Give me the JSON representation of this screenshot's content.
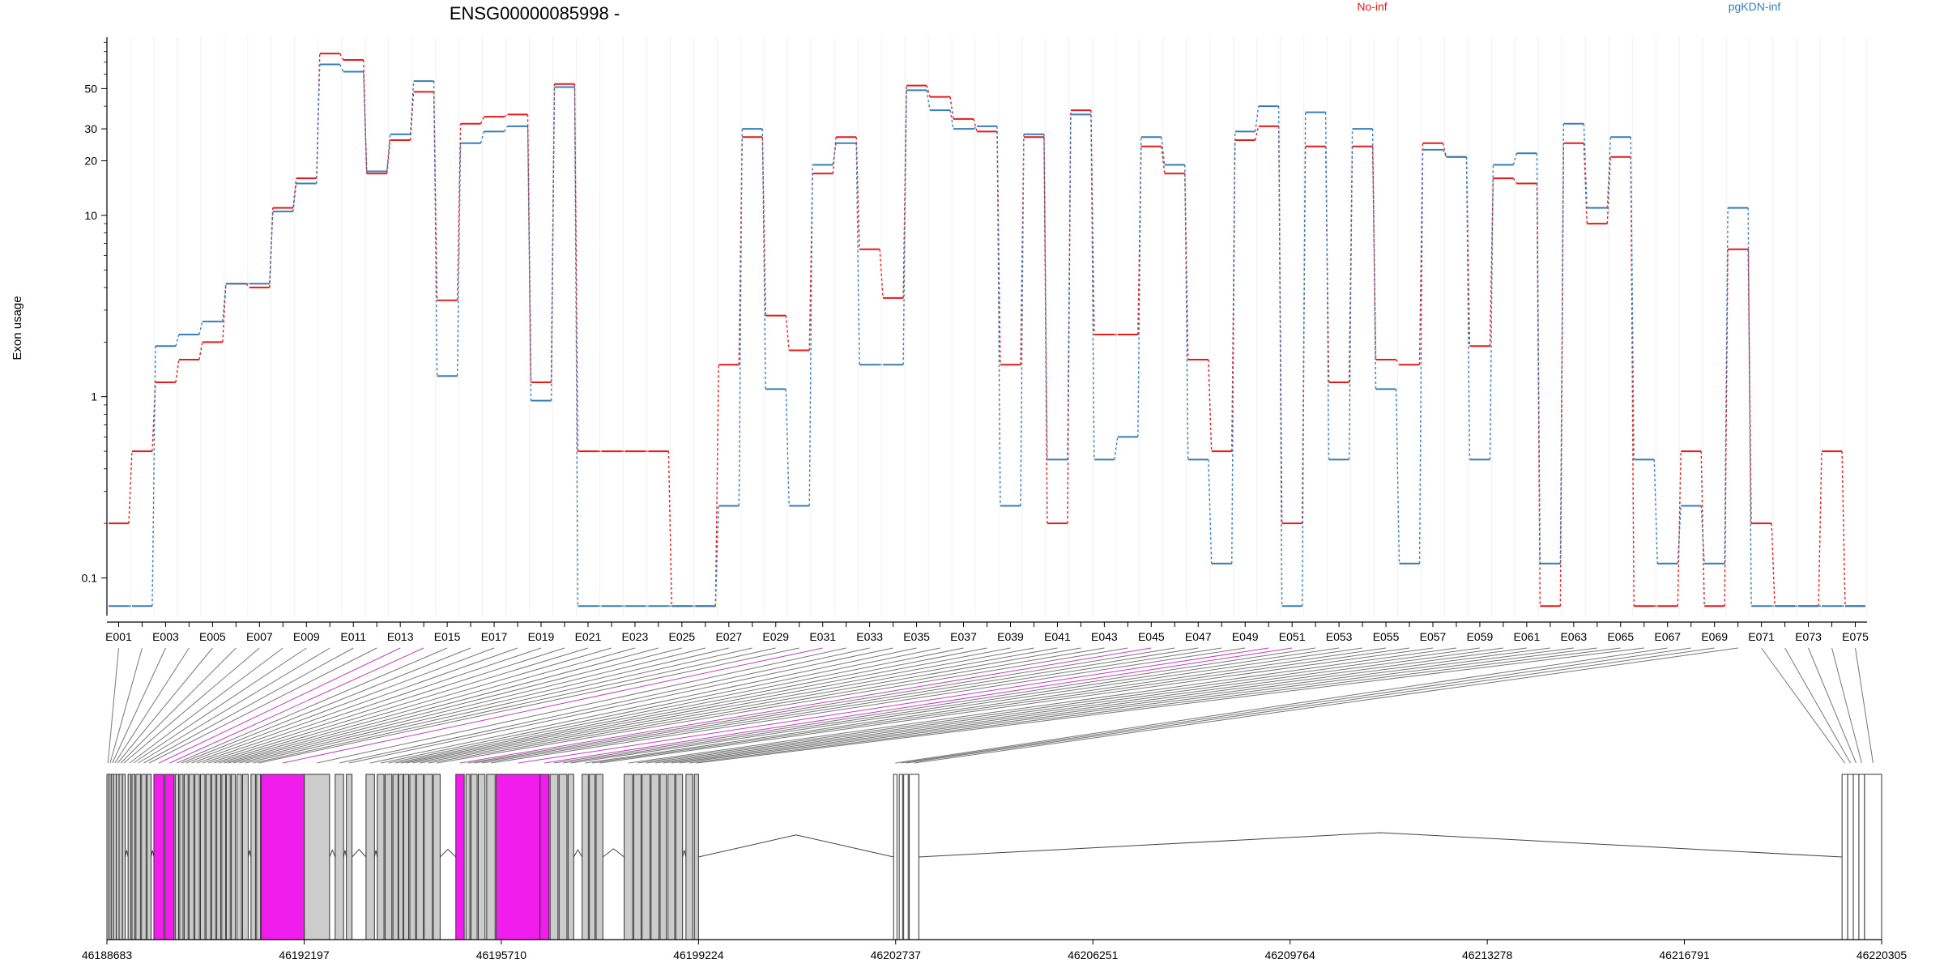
{
  "chart_data": {
    "type": "line",
    "title": "ENSG00000085998 -",
    "ylabel": "Exon usage",
    "y_scale": "log",
    "y_ticks": [
      0.1,
      1,
      10,
      20,
      30,
      50
    ],
    "y_tick_labels": [
      "0.1",
      "1",
      "10",
      "20",
      "30",
      "50"
    ],
    "legend_placement": "top",
    "exons": [
      "E001",
      "E002",
      "E003",
      "E004",
      "E005",
      "E006",
      "E007",
      "E008",
      "E009",
      "E010",
      "E011",
      "E012",
      "E013",
      "E014",
      "E015",
      "E016",
      "E017",
      "E018",
      "E019",
      "E020",
      "E021",
      "E022",
      "E023",
      "E024",
      "E025",
      "E026",
      "E027",
      "E028",
      "E029",
      "E030",
      "E031",
      "E032",
      "E033",
      "E034",
      "E035",
      "E036",
      "E037",
      "E038",
      "E039",
      "E040",
      "E041",
      "E042",
      "E043",
      "E044",
      "E045",
      "E046",
      "E047",
      "E048",
      "E049",
      "E050",
      "E051",
      "E052",
      "E053",
      "E054",
      "E055",
      "E056",
      "E057",
      "E058",
      "E059",
      "E060",
      "E061",
      "E062",
      "E063",
      "E064",
      "E065",
      "E066",
      "E067",
      "E068",
      "E069",
      "E070",
      "E071",
      "E072",
      "E073",
      "E074",
      "E075"
    ],
    "shown_exon_labels": [
      "E001",
      "E003",
      "E005",
      "E007",
      "E009",
      "E011",
      "E013",
      "E015",
      "E017",
      "E019",
      "E021",
      "E023",
      "E025",
      "E027",
      "E029",
      "E031",
      "E033",
      "E035",
      "E037",
      "E039",
      "E041",
      "E043",
      "E045",
      "E047",
      "E049",
      "E051",
      "E053",
      "E055",
      "E057",
      "E059",
      "E061",
      "E063",
      "E065",
      "E067",
      "E069",
      "E071",
      "E073",
      "E075"
    ],
    "series": [
      {
        "name": "No-inf",
        "color": "#e41a1c",
        "values": [
          0.2,
          0.5,
          1.2,
          1.6,
          2.0,
          4.2,
          4.0,
          11.0,
          16.0,
          78.0,
          72.0,
          17.0,
          26.0,
          48.0,
          3.4,
          32.0,
          35.0,
          36.0,
          1.2,
          53.0,
          0.5,
          0.5,
          0.5,
          0.5,
          0.07,
          0.07,
          1.5,
          27.0,
          2.8,
          1.8,
          17.0,
          27.0,
          6.5,
          3.5,
          52.0,
          45.0,
          34.0,
          29.0,
          1.5,
          27.0,
          0.2,
          38.0,
          2.2,
          2.2,
          24.0,
          17.0,
          1.6,
          0.5,
          26.0,
          31.0,
          0.2,
          24.0,
          1.2,
          24.0,
          1.6,
          1.5,
          25.0,
          21.0,
          1.9,
          16.0,
          15.0,
          0.07,
          25.0,
          9.0,
          21.0,
          0.07,
          0.07,
          0.5,
          0.07,
          6.5,
          0.2,
          0.07,
          0.07,
          0.5,
          0.07
        ]
      },
      {
        "name": "pgKDN-inf",
        "color": "#377eb8",
        "values": [
          0.07,
          0.07,
          1.9,
          2.2,
          2.6,
          4.2,
          4.2,
          10.5,
          15.0,
          68.0,
          62.0,
          17.5,
          28.0,
          55.0,
          1.3,
          25.0,
          29.0,
          31.0,
          0.95,
          51.0,
          0.07,
          0.07,
          0.07,
          0.07,
          0.07,
          0.07,
          0.25,
          30.0,
          1.1,
          0.25,
          19.0,
          25.0,
          1.5,
          1.5,
          49.0,
          38.0,
          30.0,
          31.0,
          0.25,
          28.0,
          0.45,
          36.0,
          0.45,
          0.6,
          27.0,
          19.0,
          0.45,
          0.12,
          29.0,
          40.0,
          0.07,
          37.0,
          0.45,
          30.0,
          1.1,
          0.12,
          23.0,
          21.0,
          0.45,
          19.0,
          22.0,
          0.12,
          32.0,
          11.0,
          27.0,
          0.45,
          0.12,
          0.25,
          0.12,
          11.0,
          0.07,
          0.07,
          0.07,
          0.07,
          0.07
        ]
      }
    ],
    "gene_axis_ticks": [
      46188683,
      46192197,
      46195710,
      46199224,
      46202737,
      46206251,
      46209764,
      46213278,
      46216791,
      46220305
    ],
    "gene_axis_tick_labels": [
      "46188683",
      "46192197",
      "46195710",
      "46199224",
      "46202737",
      "46206251",
      "46209764",
      "46213278",
      "46216791",
      "46220305"
    ],
    "gene_range": [
      46188683,
      46220305
    ],
    "exon_intervals": [
      [
        46188683,
        46188720
      ],
      [
        46188720,
        46188760
      ],
      [
        46188760,
        46188800
      ],
      [
        46188800,
        46188850
      ],
      [
        46188850,
        46188900
      ],
      [
        46188900,
        46188960
      ],
      [
        46188960,
        46189010
      ],
      [
        46189060,
        46189110
      ],
      [
        46189130,
        46189180
      ],
      [
        46189200,
        46189280
      ],
      [
        46189300,
        46189380
      ],
      [
        46189400,
        46189470
      ],
      [
        46189520,
        46189700
      ],
      [
        46189720,
        46189880
      ],
      [
        46189900,
        46189960
      ],
      [
        46189980,
        46190040
      ],
      [
        46190060,
        46190130
      ],
      [
        46190150,
        46190230
      ],
      [
        46190250,
        46190330
      ],
      [
        46190350,
        46190430
      ],
      [
        46190450,
        46190530
      ],
      [
        46190550,
        46190620
      ],
      [
        46190640,
        46190710
      ],
      [
        46190730,
        46190800
      ],
      [
        46190810,
        46190880
      ],
      [
        46190900,
        46190970
      ],
      [
        46191000,
        46191080
      ],
      [
        46191100,
        46191200
      ],
      [
        46191250,
        46191330
      ],
      [
        46191350,
        46191420
      ],
      [
        46191430,
        46192200
      ],
      [
        46192200,
        46192650
      ],
      [
        46192750,
        46192900
      ],
      [
        46192950,
        46193050
      ],
      [
        46193300,
        46193450
      ],
      [
        46193500,
        46193620
      ],
      [
        46193640,
        46193760
      ],
      [
        46193780,
        46193870
      ],
      [
        46193880,
        46193960
      ],
      [
        46193970,
        46194060
      ],
      [
        46194080,
        46194180
      ],
      [
        46194200,
        46194320
      ],
      [
        46194340,
        46194480
      ],
      [
        46194500,
        46194620
      ],
      [
        46194900,
        46195050
      ],
      [
        46195080,
        46195150
      ],
      [
        46195170,
        46195280
      ],
      [
        46195300,
        46195420
      ],
      [
        46195450,
        46195600
      ],
      [
        46195620,
        46196400
      ],
      [
        46196400,
        46196560
      ],
      [
        46196580,
        46196720
      ],
      [
        46196740,
        46196880
      ],
      [
        46196900,
        46197000
      ],
      [
        46197150,
        46197260
      ],
      [
        46197280,
        46197380
      ],
      [
        46197400,
        46197520
      ],
      [
        46197900,
        46198050
      ],
      [
        46198070,
        46198200
      ],
      [
        46198220,
        46198360
      ],
      [
        46198380,
        46198520
      ],
      [
        46198540,
        46198650
      ],
      [
        46198680,
        46198800
      ],
      [
        46198820,
        46198940
      ],
      [
        46199000,
        46199120
      ],
      [
        46199150,
        46199224
      ],
      [
        46202700,
        46202760
      ],
      [
        46202800,
        46202860
      ],
      [
        46202880,
        46202960
      ],
      [
        46202980,
        46203150
      ],
      [
        46219600,
        46219700
      ],
      [
        46219700,
        46219800
      ],
      [
        46219800,
        46219900
      ],
      [
        46219900,
        46220000
      ],
      [
        46220000,
        46220305
      ]
    ],
    "highlighted_exons": [
      "E013",
      "E014",
      "E031",
      "E045",
      "E050",
      "E051"
    ],
    "highlight_color": "#f11ded",
    "exon_fill_color": "#cccccc"
  }
}
